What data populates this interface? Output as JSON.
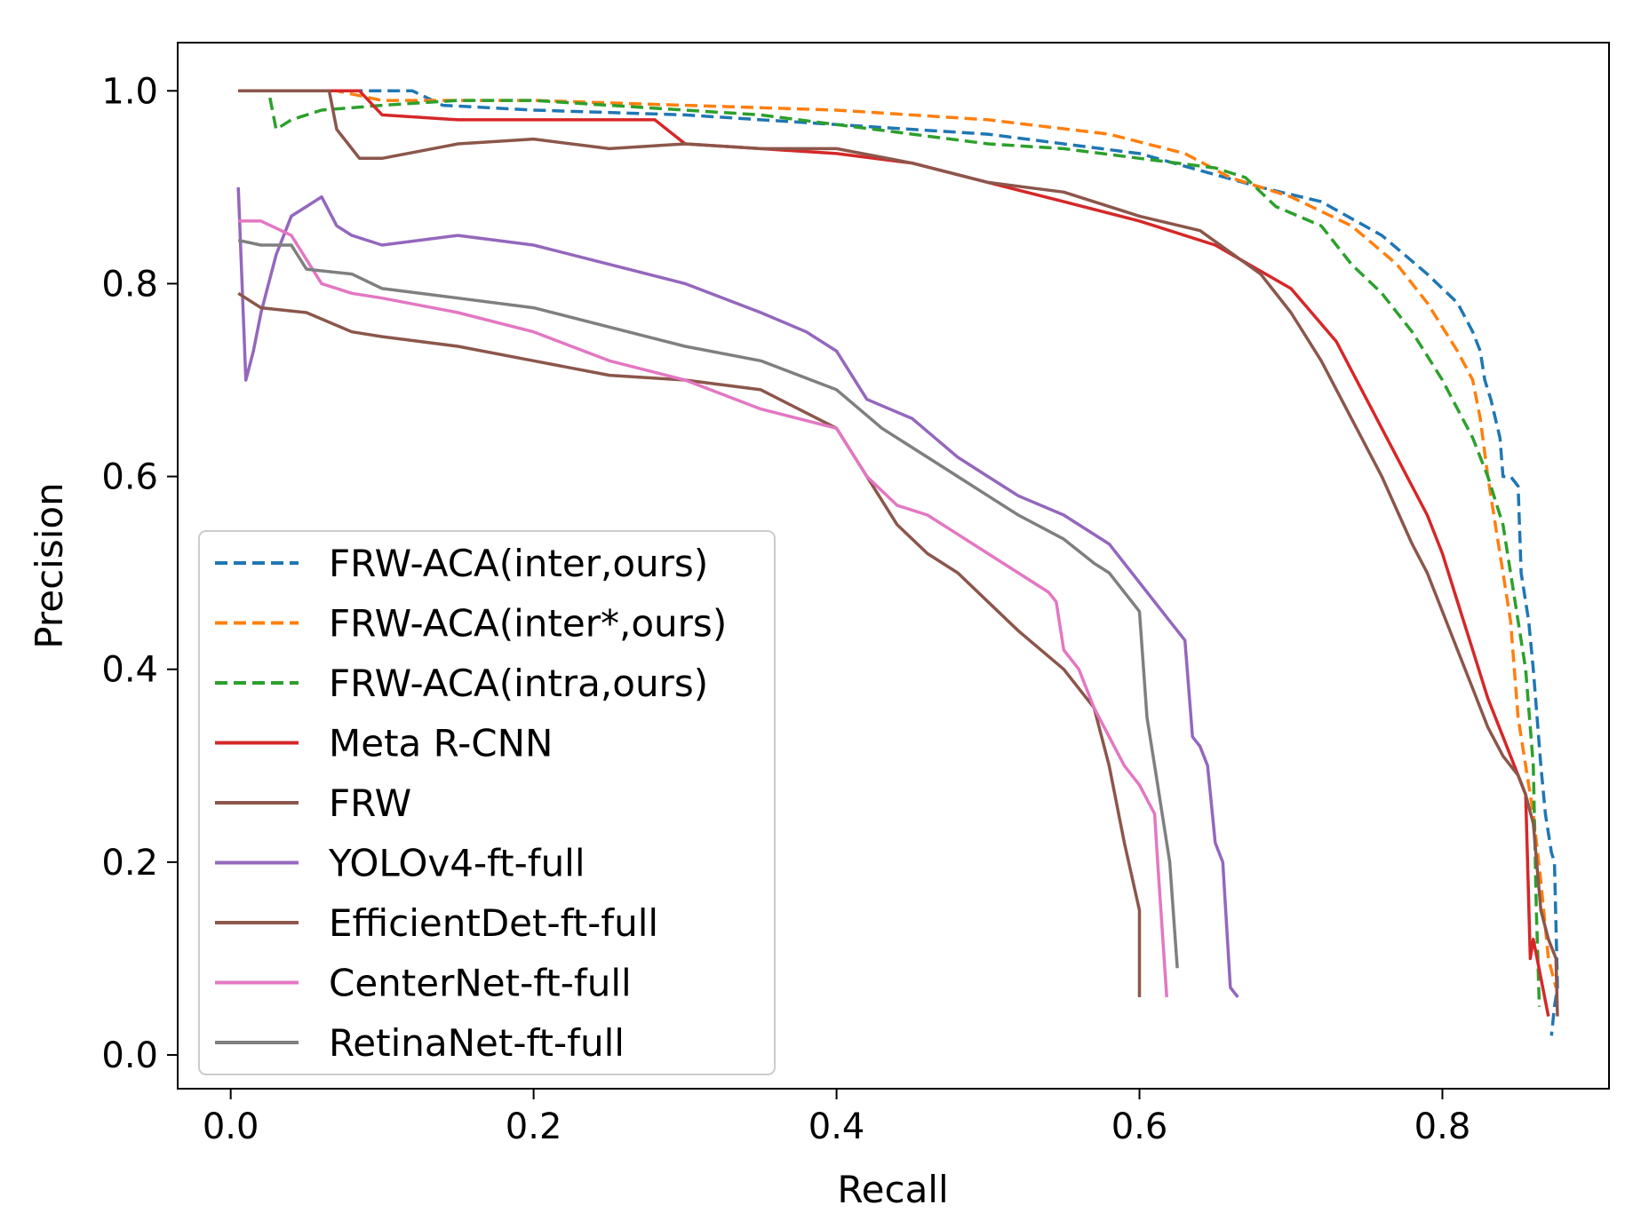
{
  "chart_data": {
    "type": "line",
    "title": "",
    "xlabel": "Recall",
    "ylabel": "Precision",
    "xlim": [
      -0.035,
      0.91
    ],
    "ylim": [
      -0.035,
      1.05
    ],
    "xticks": [
      0.0,
      0.2,
      0.4,
      0.6,
      0.8
    ],
    "xtick_labels": [
      "0.0",
      "0.2",
      "0.4",
      "0.6",
      "0.8"
    ],
    "yticks": [
      0.0,
      0.2,
      0.4,
      0.6,
      0.8,
      1.0
    ],
    "ytick_labels": [
      "0.0",
      "0.2",
      "0.4",
      "0.6",
      "0.8",
      "1.0"
    ],
    "grid": false,
    "legend_position": "lower-left",
    "series": [
      {
        "name": "FRW-ACA(inter,ours)",
        "color": "#1f77b4",
        "style": "dashed",
        "x": [
          0.005,
          0.07,
          0.12,
          0.14,
          0.2,
          0.3,
          0.4,
          0.5,
          0.6,
          0.68,
          0.72,
          0.76,
          0.79,
          0.81,
          0.82,
          0.825,
          0.828,
          0.832,
          0.838,
          0.84,
          0.845,
          0.85,
          0.852,
          0.857,
          0.86,
          0.865,
          0.868,
          0.872,
          0.874,
          0.876,
          0.874,
          0.872
        ],
        "y": [
          1.0,
          1.0,
          1.0,
          0.985,
          0.98,
          0.975,
          0.965,
          0.955,
          0.935,
          0.9,
          0.885,
          0.85,
          0.81,
          0.78,
          0.75,
          0.73,
          0.7,
          0.68,
          0.64,
          0.6,
          0.6,
          0.59,
          0.5,
          0.45,
          0.4,
          0.3,
          0.25,
          0.21,
          0.2,
          0.07,
          0.05,
          0.02
        ]
      },
      {
        "name": "FRW-ACA(inter*,ours)",
        "color": "#ff7f0e",
        "style": "dashed",
        "x": [
          0.005,
          0.07,
          0.1,
          0.2,
          0.3,
          0.4,
          0.5,
          0.58,
          0.63,
          0.66,
          0.7,
          0.74,
          0.77,
          0.79,
          0.81,
          0.82,
          0.825,
          0.83,
          0.835,
          0.84,
          0.845,
          0.85,
          0.855,
          0.86,
          0.865,
          0.87,
          0.875
        ],
        "y": [
          1.0,
          1.0,
          0.99,
          0.99,
          0.985,
          0.98,
          0.97,
          0.955,
          0.935,
          0.91,
          0.89,
          0.86,
          0.82,
          0.78,
          0.73,
          0.7,
          0.66,
          0.6,
          0.55,
          0.5,
          0.45,
          0.35,
          0.3,
          0.25,
          0.18,
          0.1,
          0.07
        ]
      },
      {
        "name": "FRW-ACA(intra,ours)",
        "color": "#2ca02c",
        "style": "dashed",
        "x": [
          0.005,
          0.025,
          0.03,
          0.04,
          0.06,
          0.1,
          0.15,
          0.2,
          0.25,
          0.3,
          0.35,
          0.4,
          0.45,
          0.5,
          0.55,
          0.6,
          0.65,
          0.67,
          0.69,
          0.72,
          0.74,
          0.76,
          0.78,
          0.8,
          0.81,
          0.82,
          0.83,
          0.84,
          0.845,
          0.85,
          0.855,
          0.86,
          0.862,
          0.864
        ],
        "y": [
          1.0,
          1.0,
          0.96,
          0.97,
          0.98,
          0.985,
          0.99,
          0.99,
          0.985,
          0.98,
          0.975,
          0.965,
          0.955,
          0.945,
          0.94,
          0.93,
          0.92,
          0.91,
          0.88,
          0.86,
          0.82,
          0.79,
          0.75,
          0.7,
          0.67,
          0.64,
          0.6,
          0.55,
          0.5,
          0.45,
          0.4,
          0.3,
          0.15,
          0.05
        ]
      },
      {
        "name": "Meta R-CNN",
        "color": "#d62728",
        "style": "solid",
        "x": [
          0.005,
          0.085,
          0.1,
          0.15,
          0.2,
          0.28,
          0.3,
          0.35,
          0.4,
          0.45,
          0.5,
          0.55,
          0.6,
          0.65,
          0.7,
          0.73,
          0.75,
          0.77,
          0.79,
          0.8,
          0.81,
          0.82,
          0.83,
          0.84,
          0.85,
          0.855,
          0.858,
          0.86,
          0.865,
          0.87
        ],
        "y": [
          1.0,
          1.0,
          0.975,
          0.97,
          0.97,
          0.97,
          0.945,
          0.94,
          0.935,
          0.925,
          0.905,
          0.885,
          0.865,
          0.84,
          0.795,
          0.74,
          0.68,
          0.62,
          0.56,
          0.52,
          0.47,
          0.42,
          0.37,
          0.33,
          0.29,
          0.27,
          0.1,
          0.12,
          0.08,
          0.04
        ]
      },
      {
        "name": "FRW",
        "color": "#8c564b",
        "style": "solid",
        "x": [
          0.005,
          0.065,
          0.07,
          0.085,
          0.1,
          0.15,
          0.2,
          0.25,
          0.3,
          0.35,
          0.4,
          0.45,
          0.5,
          0.55,
          0.6,
          0.64,
          0.68,
          0.7,
          0.72,
          0.74,
          0.76,
          0.78,
          0.79,
          0.8,
          0.81,
          0.82,
          0.83,
          0.84,
          0.85,
          0.855,
          0.86,
          0.865,
          0.87,
          0.875,
          0.876
        ],
        "y": [
          1.0,
          1.0,
          0.96,
          0.93,
          0.93,
          0.945,
          0.95,
          0.94,
          0.945,
          0.94,
          0.94,
          0.925,
          0.905,
          0.895,
          0.87,
          0.855,
          0.81,
          0.77,
          0.72,
          0.66,
          0.6,
          0.53,
          0.5,
          0.46,
          0.42,
          0.38,
          0.34,
          0.31,
          0.29,
          0.27,
          0.24,
          0.15,
          0.12,
          0.1,
          0.04
        ]
      },
      {
        "name": "YOLOv4-ft-full",
        "color": "#9467bd",
        "style": "solid",
        "x": [
          0.005,
          0.01,
          0.015,
          0.02,
          0.03,
          0.04,
          0.05,
          0.06,
          0.07,
          0.08,
          0.1,
          0.15,
          0.2,
          0.25,
          0.3,
          0.35,
          0.38,
          0.4,
          0.42,
          0.45,
          0.48,
          0.5,
          0.52,
          0.55,
          0.58,
          0.6,
          0.62,
          0.63,
          0.635,
          0.64,
          0.645,
          0.65,
          0.655,
          0.66,
          0.665
        ],
        "y": [
          0.9,
          0.7,
          0.73,
          0.77,
          0.83,
          0.87,
          0.88,
          0.89,
          0.86,
          0.85,
          0.84,
          0.85,
          0.84,
          0.82,
          0.8,
          0.77,
          0.75,
          0.73,
          0.68,
          0.66,
          0.62,
          0.6,
          0.58,
          0.56,
          0.53,
          0.49,
          0.45,
          0.43,
          0.33,
          0.32,
          0.3,
          0.22,
          0.2,
          0.07,
          0.06
        ]
      },
      {
        "name": "EfficientDet-ft-full",
        "color": "#8c564b",
        "style": "solid",
        "x": [
          0.005,
          0.02,
          0.05,
          0.08,
          0.1,
          0.15,
          0.2,
          0.25,
          0.3,
          0.35,
          0.4,
          0.42,
          0.44,
          0.46,
          0.48,
          0.5,
          0.52,
          0.55,
          0.57,
          0.58,
          0.59,
          0.6,
          0.6
        ],
        "y": [
          0.79,
          0.775,
          0.77,
          0.75,
          0.745,
          0.735,
          0.72,
          0.705,
          0.7,
          0.69,
          0.65,
          0.6,
          0.55,
          0.52,
          0.5,
          0.47,
          0.44,
          0.4,
          0.36,
          0.3,
          0.22,
          0.15,
          0.06
        ]
      },
      {
        "name": "CenterNet-ft-full",
        "color": "#e377c2",
        "style": "solid",
        "x": [
          0.005,
          0.02,
          0.04,
          0.06,
          0.08,
          0.1,
          0.15,
          0.2,
          0.25,
          0.3,
          0.35,
          0.4,
          0.42,
          0.44,
          0.46,
          0.48,
          0.5,
          0.52,
          0.54,
          0.545,
          0.55,
          0.56,
          0.57,
          0.58,
          0.59,
          0.6,
          0.61,
          0.612,
          0.615,
          0.618
        ],
        "y": [
          0.865,
          0.865,
          0.85,
          0.8,
          0.79,
          0.785,
          0.77,
          0.75,
          0.72,
          0.7,
          0.67,
          0.65,
          0.6,
          0.57,
          0.56,
          0.54,
          0.52,
          0.5,
          0.48,
          0.47,
          0.42,
          0.4,
          0.36,
          0.33,
          0.3,
          0.28,
          0.25,
          0.2,
          0.13,
          0.06
        ]
      },
      {
        "name": "RetinaNet-ft-full",
        "color": "#7f7f7f",
        "style": "solid",
        "x": [
          0.005,
          0.02,
          0.04,
          0.05,
          0.08,
          0.1,
          0.15,
          0.2,
          0.25,
          0.3,
          0.35,
          0.4,
          0.43,
          0.46,
          0.48,
          0.5,
          0.52,
          0.55,
          0.57,
          0.58,
          0.59,
          0.6,
          0.605,
          0.61,
          0.615,
          0.62,
          0.625
        ],
        "y": [
          0.845,
          0.84,
          0.84,
          0.815,
          0.81,
          0.795,
          0.785,
          0.775,
          0.755,
          0.735,
          0.72,
          0.69,
          0.65,
          0.62,
          0.6,
          0.58,
          0.56,
          0.535,
          0.51,
          0.5,
          0.48,
          0.46,
          0.35,
          0.3,
          0.25,
          0.2,
          0.09
        ]
      }
    ]
  }
}
